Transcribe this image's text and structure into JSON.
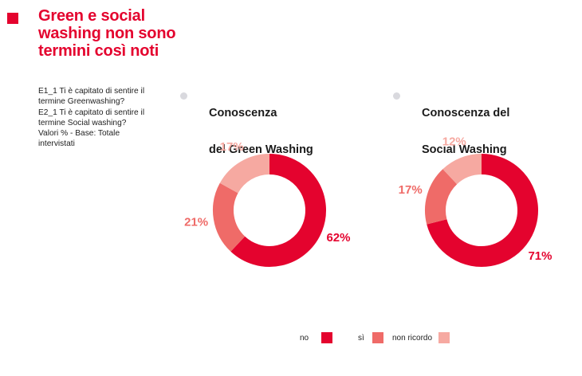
{
  "header": {
    "title": "Green e social washing non sono termini così noti"
  },
  "notes": [
    "E1_1 Ti è capitato di sentire il termine Greenwashing?",
    "E2_1 Ti è capitato di sentire il termine Social washing?",
    "Valori % - Base: Totale intervistati"
  ],
  "colors": {
    "accent": "#e4032e",
    "no": "#e4032e",
    "si": "#ef6b68",
    "non_ricordo": "#f6a9a1"
  },
  "chart_data": [
    {
      "type": "pie",
      "variant": "donut",
      "title": "Conoscenza del Green Washing",
      "title_lines": [
        "Conoscenza",
        "del Green Washing"
      ],
      "categories": [
        "no",
        "sì",
        "non ricordo"
      ],
      "values": [
        62,
        21,
        17
      ],
      "labels": [
        "62%",
        "21%",
        "17%"
      ]
    },
    {
      "type": "pie",
      "variant": "donut",
      "title": "Conoscenza del Social Washing",
      "title_lines": [
        "Conoscenza del",
        "Social Washing"
      ],
      "categories": [
        "no",
        "sì",
        "non ricordo"
      ],
      "values": [
        71,
        17,
        12
      ],
      "labels": [
        "71%",
        "17%",
        "12%"
      ]
    }
  ],
  "legend": {
    "items": [
      {
        "label": "no",
        "color": "#e4032e"
      },
      {
        "label": "sì",
        "color": "#ef6b68"
      },
      {
        "label": "non ricordo",
        "color": "#f6a9a1"
      }
    ]
  }
}
